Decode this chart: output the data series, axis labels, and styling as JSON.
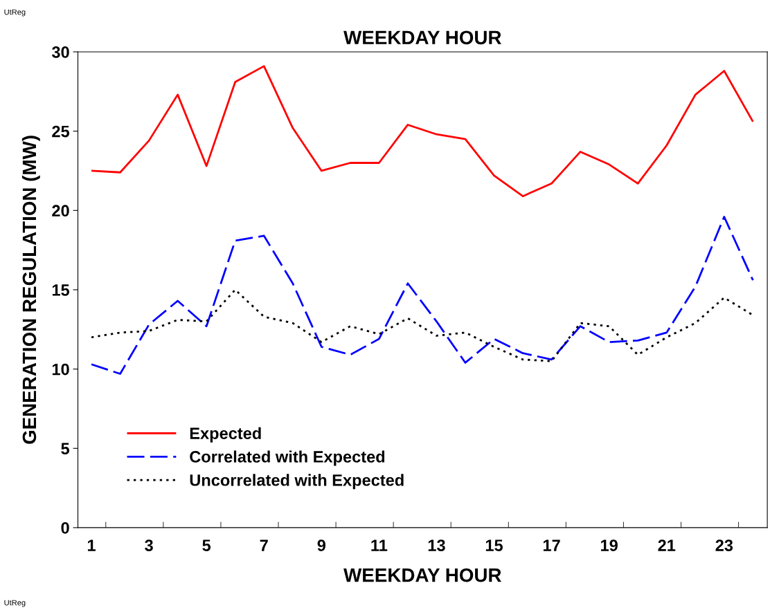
{
  "chart_data": {
    "type": "line",
    "title": "WEEKDAY HOUR",
    "xlabel": "WEEKDAY HOUR",
    "ylabel": "GENERATION REGULATION (MW)",
    "categories": [
      "1",
      null,
      "3",
      null,
      "5",
      null,
      "7",
      null,
      "9",
      null,
      "11",
      null,
      "13",
      null,
      "15",
      null,
      "17",
      null,
      "19",
      null,
      "21",
      null,
      "23",
      null
    ],
    "series": [
      {
        "name": "Expected",
        "color": "#ff0000",
        "line_style": "solid",
        "values": [
          22.5,
          22.4,
          24.4,
          27.3,
          22.8,
          28.1,
          29.1,
          25.2,
          22.5,
          23.0,
          23.0,
          25.4,
          24.8,
          24.5,
          22.2,
          20.9,
          21.7,
          23.7,
          22.9,
          21.7,
          24.1,
          27.3,
          28.8,
          25.6
        ]
      },
      {
        "name": "Correlated with Expected",
        "color": "#0000ff",
        "line_style": "dashed",
        "values": [
          10.3,
          9.7,
          12.8,
          14.3,
          12.7,
          18.1,
          18.4,
          15.4,
          11.4,
          10.9,
          11.9,
          15.4,
          13.0,
          10.4,
          11.9,
          11.0,
          10.6,
          12.7,
          11.7,
          11.8,
          12.3,
          15.2,
          19.6,
          15.6
        ]
      },
      {
        "name": "Uncorrelated with Expected",
        "color": "#000000",
        "line_style": "dotted",
        "values": [
          12.0,
          12.3,
          12.4,
          13.1,
          13.0,
          15.0,
          13.3,
          12.9,
          11.7,
          12.7,
          12.2,
          13.2,
          12.1,
          12.3,
          11.4,
          10.6,
          10.5,
          12.9,
          12.7,
          10.9,
          12.0,
          12.9,
          14.5,
          13.4
        ]
      }
    ],
    "ylim": [
      0,
      30
    ],
    "yticks": [
      0,
      5,
      10,
      15,
      20,
      25,
      30
    ],
    "grid": false,
    "legend": "bottom left",
    "marker": "none",
    "annotations": [
      "UtReg",
      "UtReg"
    ]
  }
}
